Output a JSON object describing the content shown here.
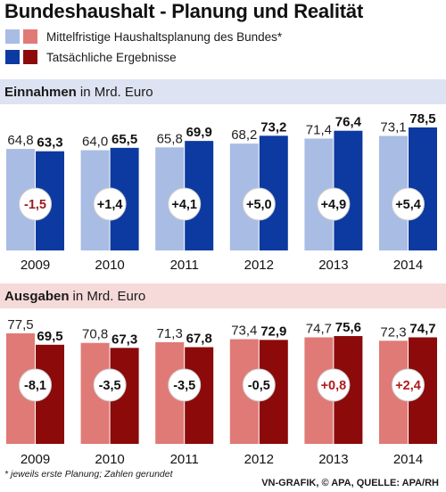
{
  "title": "Bundeshaushalt - Planung und Realität",
  "legend": [
    {
      "label": "Mittelfristige Haushaltsplanung des Bundes*",
      "colors": [
        "#a9bce4",
        "#e07a76"
      ]
    },
    {
      "label": "Tatsächliche Ergebnisse",
      "colors": [
        "#0d3aa0",
        "#8c0a0a"
      ]
    }
  ],
  "colors": {
    "income_plan": "#a9bce4",
    "income_actual": "#0d3aa0",
    "expense_plan": "#e07a76",
    "expense_actual": "#8c0a0a",
    "income_band": "#dde3f2",
    "expense_band": "#f6dada",
    "diff_negative": "#9b1a1a",
    "diff_positive_income": "#111111",
    "diff_positive_expense": "#b01a1a"
  },
  "sections": {
    "income": {
      "heading_bold": "Einnahmen",
      "heading_rest": "in Mrd. Euro"
    },
    "expenses": {
      "heading_bold": "Ausgaben",
      "heading_rest": "in Mrd. Euro"
    }
  },
  "footnote": "* jeweils erste Planung; Zahlen gerundet",
  "credit": "VN-GRAFIK, © APA, QUELLE: APA/RH",
  "chart_data": [
    {
      "type": "bar",
      "title": "Einnahmen in Mrd. Euro",
      "categories": [
        "2009",
        "2010",
        "2011",
        "2012",
        "2013",
        "2014"
      ],
      "series": [
        {
          "name": "Mittelfristige Haushaltsplanung des Bundes*",
          "values": [
            64.8,
            64.0,
            65.8,
            68.2,
            71.4,
            73.1
          ],
          "labels": [
            "64,8",
            "64,0",
            "65,8",
            "68,2",
            "71,4",
            "73,1"
          ]
        },
        {
          "name": "Tatsächliche Ergebnisse",
          "values": [
            63.3,
            65.5,
            69.9,
            73.2,
            76.4,
            78.5
          ],
          "labels": [
            "63,3",
            "65,5",
            "69,9",
            "73,2",
            "76,4",
            "78,5"
          ]
        }
      ],
      "differences": [
        "-1,5",
        "+1,4",
        "+4,1",
        "+5,0",
        "+4,9",
        "+5,4"
      ],
      "ylim": [
        0,
        78.5
      ],
      "grid": false
    },
    {
      "type": "bar",
      "title": "Ausgaben in Mrd. Euro",
      "categories": [
        "2009",
        "2010",
        "2011",
        "2012",
        "2013",
        "2014"
      ],
      "series": [
        {
          "name": "Mittelfristige Haushaltsplanung des Bundes*",
          "values": [
            77.5,
            70.8,
            71.3,
            73.4,
            74.7,
            72.3
          ],
          "labels": [
            "77,5",
            "70,8",
            "71,3",
            "73,4",
            "74,7",
            "72,3"
          ]
        },
        {
          "name": "Tatsächliche Ergebnisse",
          "values": [
            69.5,
            67.3,
            67.8,
            72.9,
            75.6,
            74.7
          ],
          "labels": [
            "69,5",
            "67,3",
            "67,8",
            "72,9",
            "75,6",
            "74,7"
          ]
        }
      ],
      "differences": [
        "-8,1",
        "-3,5",
        "-3,5",
        "-0,5",
        "+0,8",
        "+2,4"
      ],
      "ylim": [
        0,
        77.5
      ],
      "grid": false
    }
  ]
}
